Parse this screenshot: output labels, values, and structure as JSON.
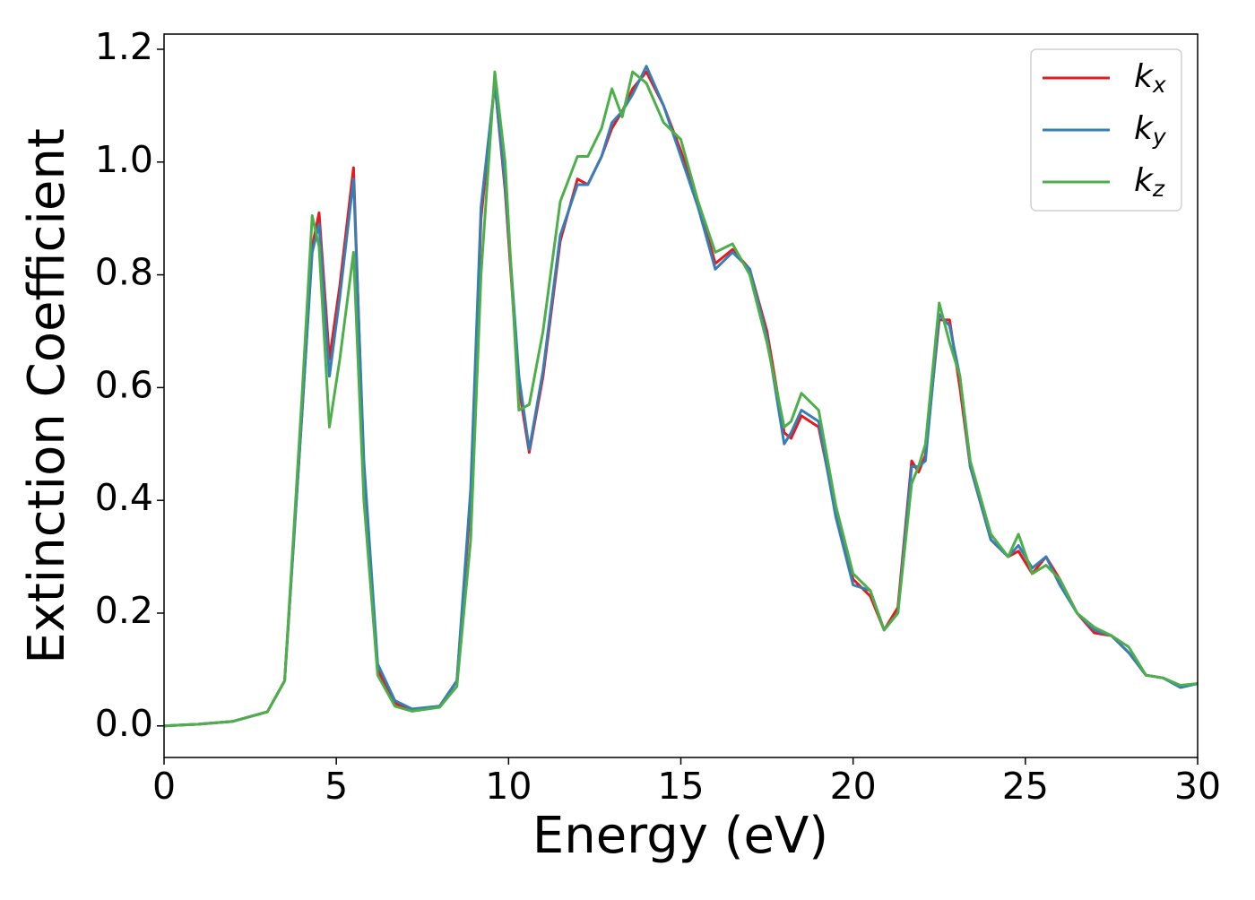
{
  "chart_data": {
    "type": "line",
    "xlabel": "Energy (eV)",
    "ylabel": "Extinction Coefficient",
    "x": [
      0,
      1,
      2,
      3,
      3.5,
      4,
      4.3,
      4.5,
      4.8,
      5.1,
      5.5,
      5.8,
      6.2,
      6.7,
      7.2,
      8,
      8.5,
      8.9,
      9.2,
      9.6,
      9.9,
      10.3,
      10.6,
      11,
      11.5,
      12,
      12.3,
      12.7,
      13,
      13.3,
      13.6,
      14,
      14.5,
      15,
      15.5,
      16,
      16.5,
      17,
      17.5,
      18,
      18.2,
      18.5,
      19,
      19.5,
      20,
      20.5,
      20.9,
      21.3,
      21.7,
      21.9,
      22.1,
      22.5,
      22.8,
      23.1,
      23.4,
      24,
      24.5,
      24.8,
      25.2,
      25.6,
      26,
      26.5,
      27,
      27.5,
      28,
      28.5,
      29,
      29.5,
      30
    ],
    "series": [
      {
        "name": "kx",
        "color": "#e41a1c",
        "values": [
          0,
          0.003,
          0.008,
          0.025,
          0.08,
          0.55,
          0.85,
          0.91,
          0.65,
          0.78,
          0.99,
          0.45,
          0.1,
          0.04,
          0.028,
          0.035,
          0.08,
          0.4,
          0.9,
          1.14,
          0.95,
          0.6,
          0.485,
          0.62,
          0.86,
          0.97,
          0.96,
          1.01,
          1.06,
          1.09,
          1.13,
          1.16,
          1.1,
          1.02,
          0.93,
          0.82,
          0.845,
          0.81,
          0.7,
          0.52,
          0.51,
          0.55,
          0.53,
          0.38,
          0.26,
          0.23,
          0.17,
          0.21,
          0.47,
          0.45,
          0.48,
          0.72,
          0.72,
          0.6,
          0.46,
          0.33,
          0.3,
          0.31,
          0.27,
          0.3,
          0.26,
          0.2,
          0.165,
          0.16,
          0.13,
          0.09,
          0.085,
          0.07,
          0.075
        ]
      },
      {
        "name": "ky",
        "color": "#377eb8",
        "values": [
          0,
          0.003,
          0.008,
          0.025,
          0.08,
          0.55,
          0.84,
          0.89,
          0.62,
          0.76,
          0.97,
          0.47,
          0.11,
          0.045,
          0.03,
          0.035,
          0.08,
          0.42,
          0.92,
          1.14,
          0.96,
          0.62,
          0.49,
          0.63,
          0.87,
          0.96,
          0.96,
          1.01,
          1.07,
          1.09,
          1.12,
          1.17,
          1.1,
          1.01,
          0.92,
          0.81,
          0.84,
          0.81,
          0.69,
          0.5,
          0.52,
          0.56,
          0.54,
          0.37,
          0.25,
          0.24,
          0.17,
          0.2,
          0.46,
          0.46,
          0.47,
          0.73,
          0.71,
          0.62,
          0.46,
          0.33,
          0.3,
          0.32,
          0.28,
          0.3,
          0.25,
          0.2,
          0.17,
          0.16,
          0.13,
          0.09,
          0.085,
          0.068,
          0.075
        ]
      },
      {
        "name": "kz",
        "color": "#4daf4a",
        "values": [
          0,
          0.003,
          0.008,
          0.025,
          0.08,
          0.58,
          0.905,
          0.85,
          0.53,
          0.65,
          0.84,
          0.4,
          0.09,
          0.035,
          0.026,
          0.033,
          0.07,
          0.33,
          0.8,
          1.16,
          1.0,
          0.56,
          0.57,
          0.7,
          0.93,
          1.01,
          1.01,
          1.06,
          1.13,
          1.08,
          1.16,
          1.14,
          1.07,
          1.04,
          0.93,
          0.84,
          0.855,
          0.8,
          0.68,
          0.53,
          0.54,
          0.59,
          0.56,
          0.39,
          0.27,
          0.24,
          0.17,
          0.2,
          0.43,
          0.46,
          0.5,
          0.75,
          0.68,
          0.62,
          0.47,
          0.34,
          0.3,
          0.34,
          0.27,
          0.285,
          0.26,
          0.2,
          0.175,
          0.16,
          0.14,
          0.09,
          0.085,
          0.072,
          0.075
        ]
      }
    ],
    "xlim": [
      0,
      30
    ],
    "xticks": [
      0,
      5,
      10,
      15,
      20,
      25,
      30
    ],
    "ylim": [
      -0.056,
      1.227
    ],
    "yticks": [
      {
        "value": 0,
        "label": "0.0"
      },
      0.2,
      0.4,
      0.6,
      0.8,
      {
        "value": 1,
        "label": "1.0"
      },
      1.2
    ],
    "grid": false,
    "legend": "upper right"
  }
}
